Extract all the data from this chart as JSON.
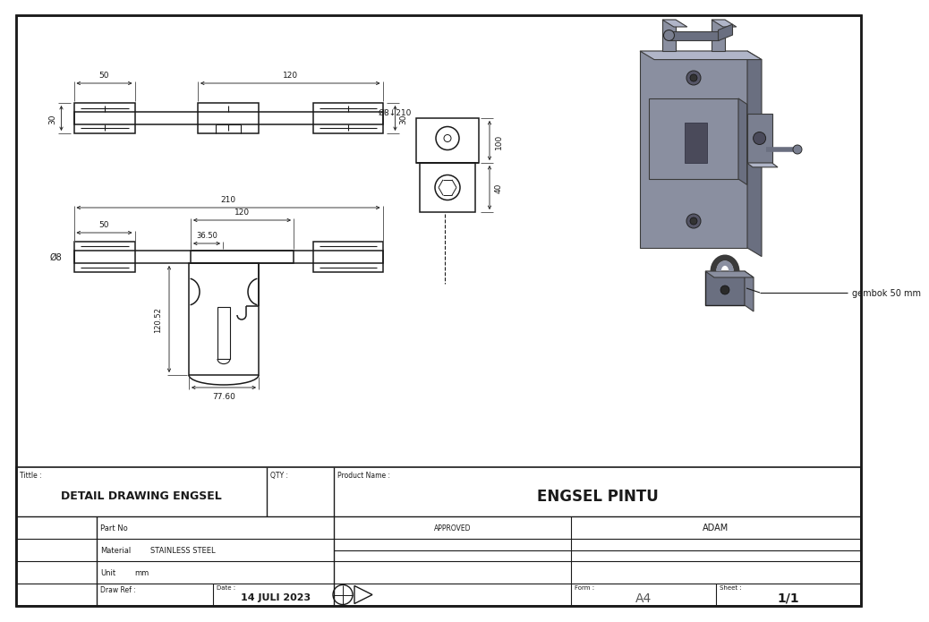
{
  "bg_color": "#ffffff",
  "lc": "#1a1a1a",
  "gray3d": "#8a8fa0",
  "gray3d_dark": "#6a6f80",
  "gray3d_light": "#b0b5c8",
  "gray3d_side": "#7a7f90",
  "title_block": {
    "title_label": "Tittle :",
    "title_value": "DETAIL DRAWING ENGSEL",
    "qty_label": "QTY :",
    "product_label": "Product Name :",
    "product_value": "ENGSEL PINTU",
    "part_no_label": "Part No",
    "material_label": "Material",
    "material_value": "STAINLESS STEEL",
    "unit_label": "Unit",
    "unit_value": "mm",
    "approved_label": "APPROVED",
    "approved_value": "ADAM",
    "draw_ref_label": "Draw Ref :",
    "date_label": "Date :",
    "date_value": "14 JULI 2023",
    "form_label": "Form :",
    "form_value": "A4",
    "sheet_label": "Sheet :",
    "sheet_value": "1/1"
  },
  "dims": {
    "top_50": "50",
    "top_120": "120",
    "top_30": "30",
    "main_210": "210",
    "main_120": "120",
    "main_50": "50",
    "main_3650": "36.50",
    "phi8": "Ø8",
    "phi8_210": "Ø8↓210",
    "main_height": "120.52",
    "main_width": "77.60",
    "side_100": "100",
    "side_40": "40",
    "gembok": "gembok 50 mm"
  }
}
